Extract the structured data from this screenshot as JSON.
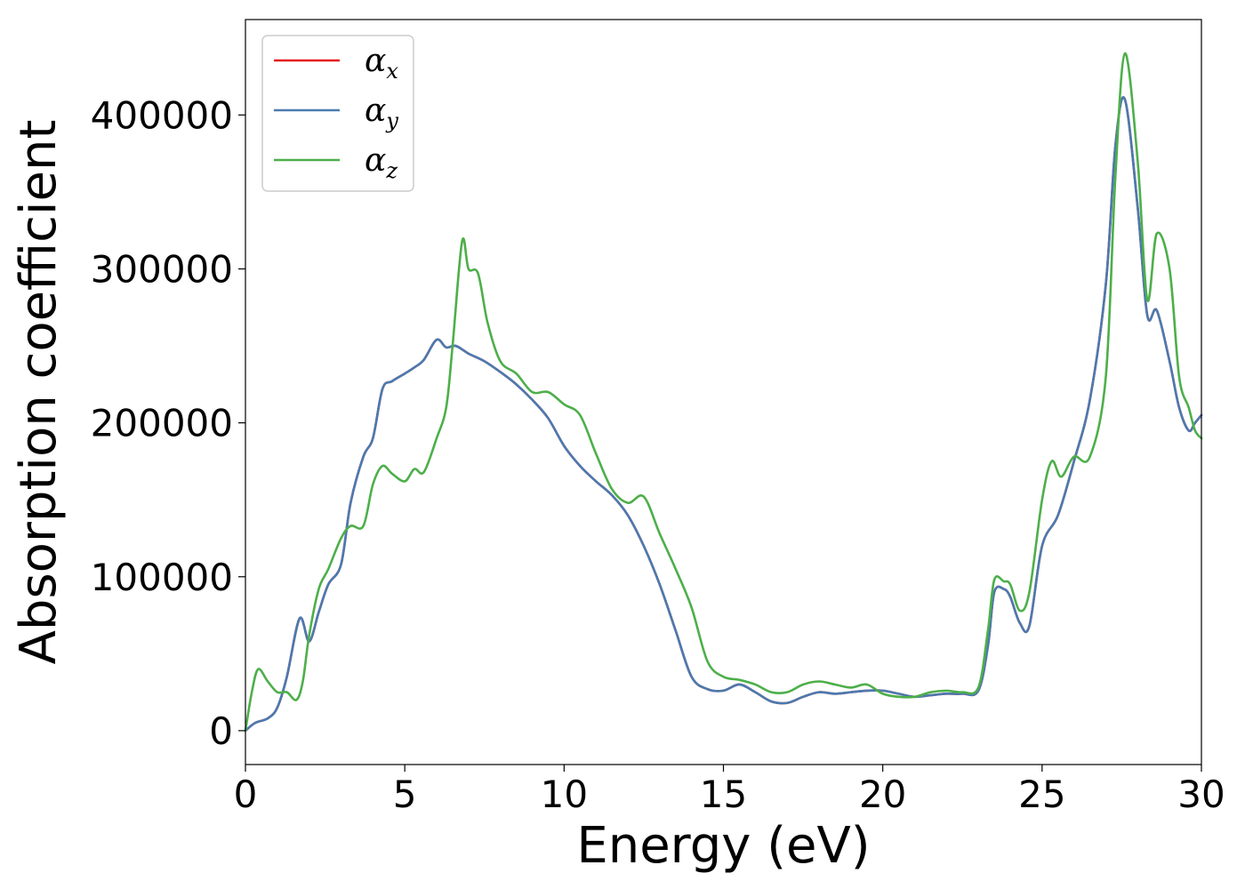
{
  "chart_data": {
    "type": "line",
    "xlabel": "Energy (eV)",
    "ylabel": "Absorption coefficient",
    "xlim": [
      0,
      30
    ],
    "ylim": [
      -22000,
      462000
    ],
    "xticks": [
      0,
      5,
      10,
      15,
      20,
      25,
      30
    ],
    "yticks": [
      0,
      100000,
      200000,
      300000,
      400000
    ],
    "xtick_labels": [
      "0",
      "5",
      "10",
      "15",
      "20",
      "25",
      "30"
    ],
    "ytick_labels": [
      "0",
      "100000",
      "200000",
      "300000",
      "400000"
    ],
    "grid": false,
    "legend_position": "top-left",
    "series": [
      {
        "name": "α",
        "subscript": "x",
        "color": "#e41a1c",
        "x": [
          0,
          0.3,
          0.7,
          1.0,
          1.3,
          1.7,
          2.0,
          2.3,
          2.6,
          3.0,
          3.3,
          3.7,
          4.0,
          4.3,
          4.6,
          5.0,
          5.3,
          5.6,
          6.0,
          6.3,
          6.6,
          7.0,
          7.5,
          8.0,
          8.5,
          9.0,
          9.5,
          10.0,
          10.5,
          11.0,
          11.5,
          12.0,
          12.5,
          13.0,
          13.5,
          14.0,
          14.5,
          15.0,
          15.5,
          16.0,
          16.5,
          17.0,
          17.5,
          18.0,
          18.5,
          19.0,
          19.5,
          20.0,
          20.5,
          21.0,
          21.5,
          22.0,
          22.5,
          23.0,
          23.3,
          23.5,
          23.8,
          24.0,
          24.3,
          24.6,
          25.0,
          25.5,
          26.0,
          26.5,
          27.0,
          27.3,
          27.6,
          28.0,
          28.3,
          28.6,
          29.0,
          29.3,
          29.6,
          29.8,
          30.0
        ],
        "y": [
          0,
          5000,
          8000,
          15000,
          35000,
          73000,
          58000,
          77000,
          95000,
          108000,
          148000,
          178000,
          190000,
          222000,
          227000,
          232000,
          236000,
          241000,
          254000,
          249000,
          250000,
          245000,
          240000,
          233000,
          225000,
          215000,
          203000,
          185000,
          172000,
          162000,
          153000,
          140000,
          120000,
          95000,
          65000,
          35000,
          27000,
          26000,
          30000,
          25000,
          19000,
          18000,
          22000,
          25000,
          24000,
          25000,
          26000,
          26000,
          24000,
          22000,
          23000,
          24000,
          24000,
          26000,
          55000,
          90000,
          92000,
          87000,
          70000,
          68000,
          120000,
          140000,
          175000,
          215000,
          290000,
          380000,
          410000,
          340000,
          270000,
          273000,
          240000,
          210000,
          195000,
          200000,
          205000
        ]
      },
      {
        "name": "α",
        "subscript": "y",
        "color": "#4a7ab0",
        "x": [
          0,
          0.3,
          0.7,
          1.0,
          1.3,
          1.7,
          2.0,
          2.3,
          2.6,
          3.0,
          3.3,
          3.7,
          4.0,
          4.3,
          4.6,
          5.0,
          5.3,
          5.6,
          6.0,
          6.3,
          6.6,
          7.0,
          7.5,
          8.0,
          8.5,
          9.0,
          9.5,
          10.0,
          10.5,
          11.0,
          11.5,
          12.0,
          12.5,
          13.0,
          13.5,
          14.0,
          14.5,
          15.0,
          15.5,
          16.0,
          16.5,
          17.0,
          17.5,
          18.0,
          18.5,
          19.0,
          19.5,
          20.0,
          20.5,
          21.0,
          21.5,
          22.0,
          22.5,
          23.0,
          23.3,
          23.5,
          23.8,
          24.0,
          24.3,
          24.6,
          25.0,
          25.5,
          26.0,
          26.5,
          27.0,
          27.3,
          27.6,
          28.0,
          28.3,
          28.6,
          29.0,
          29.3,
          29.6,
          29.8,
          30.0
        ],
        "y": [
          0,
          5000,
          8000,
          15000,
          35000,
          73000,
          58000,
          77000,
          95000,
          108000,
          148000,
          178000,
          190000,
          222000,
          227000,
          232000,
          236000,
          241000,
          254000,
          249000,
          250000,
          245000,
          240000,
          233000,
          225000,
          215000,
          203000,
          185000,
          172000,
          162000,
          153000,
          140000,
          120000,
          95000,
          65000,
          35000,
          27000,
          26000,
          30000,
          25000,
          19000,
          18000,
          22000,
          25000,
          24000,
          25000,
          26000,
          26000,
          24000,
          22000,
          23000,
          24000,
          24000,
          26000,
          55000,
          90000,
          92000,
          87000,
          70000,
          68000,
          120000,
          140000,
          175000,
          215000,
          290000,
          380000,
          410000,
          340000,
          270000,
          273000,
          240000,
          210000,
          195000,
          200000,
          205000
        ]
      },
      {
        "name": "α",
        "subscript": "z",
        "color": "#4daf4a",
        "x": [
          0,
          0.2,
          0.4,
          0.7,
          1.0,
          1.3,
          1.6,
          1.8,
          2.0,
          2.3,
          2.6,
          3.0,
          3.3,
          3.7,
          4.0,
          4.3,
          4.6,
          5.0,
          5.3,
          5.6,
          6.0,
          6.3,
          6.5,
          6.8,
          7.0,
          7.3,
          7.6,
          8.0,
          8.5,
          9.0,
          9.5,
          10.0,
          10.5,
          11.0,
          11.5,
          12.0,
          12.5,
          13.0,
          13.5,
          14.0,
          14.5,
          15.0,
          15.5,
          16.0,
          16.5,
          17.0,
          17.5,
          18.0,
          18.5,
          19.0,
          19.5,
          20.0,
          20.5,
          21.0,
          21.5,
          22.0,
          22.5,
          23.0,
          23.3,
          23.5,
          23.8,
          24.0,
          24.3,
          24.6,
          25.0,
          25.3,
          25.6,
          26.0,
          26.5,
          27.0,
          27.3,
          27.6,
          28.0,
          28.3,
          28.6,
          29.0,
          29.3,
          29.6,
          29.8,
          30.0
        ],
        "y": [
          0,
          25000,
          40000,
          32000,
          25000,
          25000,
          20000,
          32000,
          62000,
          92000,
          105000,
          125000,
          133000,
          133000,
          160000,
          172000,
          167000,
          162000,
          170000,
          168000,
          190000,
          210000,
          250000,
          318000,
          300000,
          297000,
          265000,
          240000,
          232000,
          220000,
          220000,
          212000,
          205000,
          180000,
          157000,
          148000,
          152000,
          128000,
          105000,
          80000,
          45000,
          35000,
          33000,
          30000,
          25000,
          25000,
          30000,
          32000,
          30000,
          28000,
          30000,
          24000,
          22000,
          22000,
          25000,
          26000,
          25000,
          28000,
          65000,
          98000,
          97000,
          95000,
          78000,
          90000,
          150000,
          175000,
          165000,
          178000,
          178000,
          230000,
          360000,
          440000,
          370000,
          280000,
          323000,
          300000,
          230000,
          210000,
          195000,
          190000
        ]
      }
    ]
  }
}
